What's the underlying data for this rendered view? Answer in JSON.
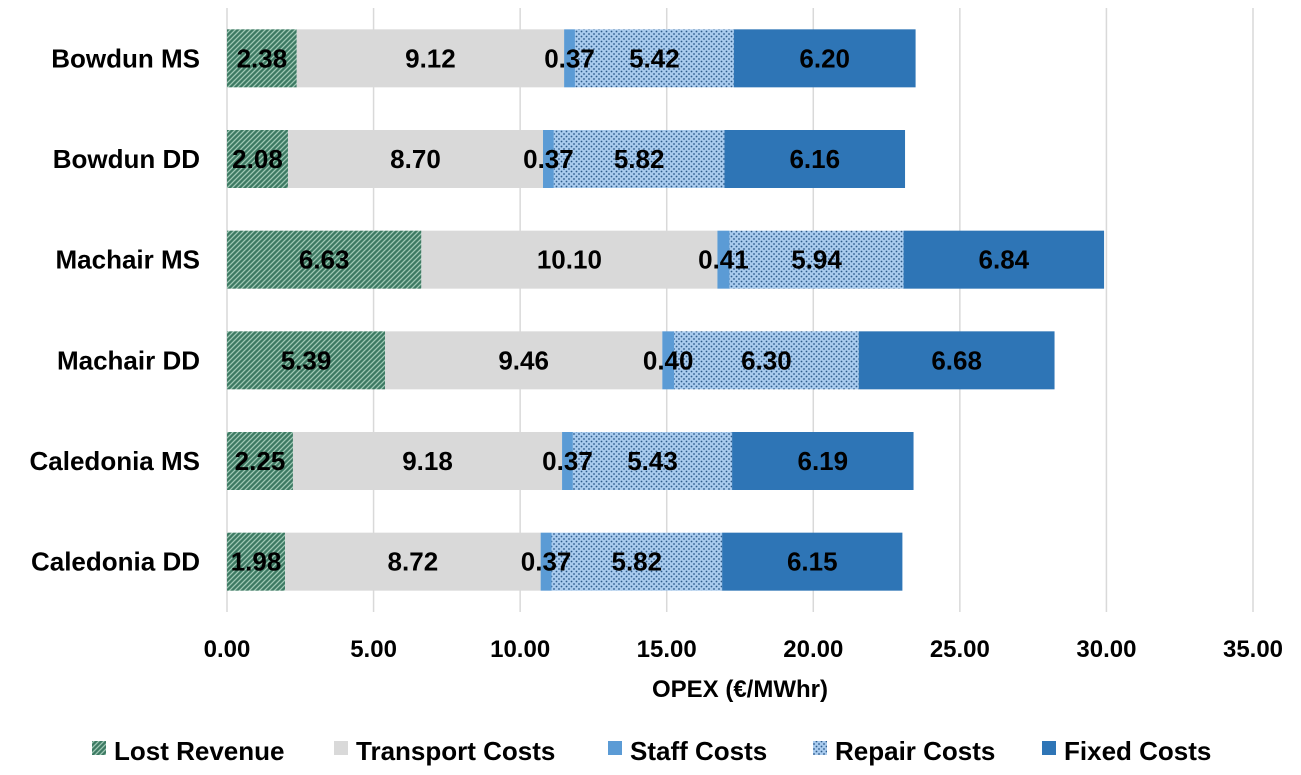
{
  "chart_data": {
    "type": "bar",
    "orientation": "horizontal",
    "stacked": true,
    "title": "",
    "xlabel": "OPEX (€/MWhr)",
    "ylabel": "",
    "xlim": [
      0,
      35
    ],
    "x_ticks": [
      0,
      5,
      10,
      15,
      20,
      25,
      30,
      35
    ],
    "x_tick_labels": [
      "0.00",
      "5.00",
      "10.00",
      "15.00",
      "20.00",
      "25.00",
      "30.00",
      "35.00"
    ],
    "grid": true,
    "legend_position": "bottom",
    "categories": [
      "Bowdun MS",
      "Bowdun DD",
      "Machair MS",
      "Machair DD",
      "Caledonia MS",
      "Caledonia DD"
    ],
    "series": [
      {
        "name": "Lost Revenue",
        "color": "#3d7a63",
        "pattern": "diagonal-hatch",
        "values": [
          2.38,
          2.08,
          6.63,
          5.39,
          2.25,
          1.98
        ],
        "labels": [
          "2.38",
          "2.08",
          "6.63",
          "5.39",
          "2.25",
          "1.98"
        ]
      },
      {
        "name": "Transport Costs",
        "color": "#d9d9d9",
        "pattern": "solid",
        "values": [
          9.12,
          8.7,
          10.1,
          9.46,
          9.18,
          8.72
        ],
        "labels": [
          "9.12",
          "8.70",
          "10.10",
          "9.46",
          "9.18",
          "8.72"
        ]
      },
      {
        "name": "Staff Costs",
        "color": "#5b9bd5",
        "pattern": "solid",
        "values": [
          0.37,
          0.37,
          0.41,
          0.4,
          0.37,
          0.37
        ],
        "labels": [
          "0.37",
          "0.37",
          "0.41",
          "0.40",
          "0.37",
          "0.37"
        ]
      },
      {
        "name": "Repair Costs",
        "color": "#a9cbee",
        "pattern": "dots",
        "values": [
          5.42,
          5.82,
          5.94,
          6.3,
          5.43,
          5.82
        ],
        "labels": [
          "5.42",
          "5.82",
          "5.94",
          "6.30",
          "5.43",
          "5.82"
        ]
      },
      {
        "name": "Fixed Costs",
        "color": "#2e75b6",
        "pattern": "solid",
        "values": [
          6.2,
          6.16,
          6.84,
          6.68,
          6.19,
          6.15
        ],
        "labels": [
          "6.20",
          "6.16",
          "6.84",
          "6.68",
          "6.19",
          "6.15"
        ]
      }
    ]
  }
}
